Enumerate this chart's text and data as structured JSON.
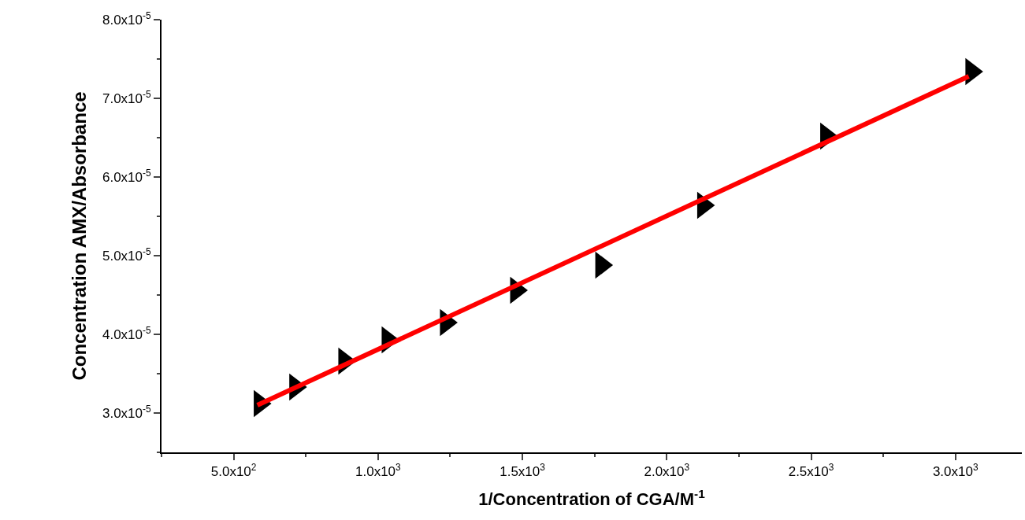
{
  "chart_data": {
    "type": "scatter",
    "xlabel": "1/Concentration of CGA/M$^{-1}$",
    "ylabel": "Concentration AMX/Absorbance",
    "grid": false,
    "legend": false,
    "xlim": [
      250,
      3230
    ],
    "ylim": [
      2.5e-05,
      8e-05
    ],
    "xticks": [
      {
        "value": 500,
        "label": "5.0x10$^{2}$"
      },
      {
        "value": 1000,
        "label": "1.0x10$^{3}$"
      },
      {
        "value": 1500,
        "label": "1.5x10$^{3}$"
      },
      {
        "value": 2000,
        "label": "2.0x10$^{3}$"
      },
      {
        "value": 2500,
        "label": "2.5x10$^{3}$"
      },
      {
        "value": 3000,
        "label": "3.0x10$^{3}$"
      }
    ],
    "yticks": [
      {
        "value": 3e-05,
        "label": "3.0x10$^{-5}$"
      },
      {
        "value": 4e-05,
        "label": "4.0x10$^{-5}$"
      },
      {
        "value": 5e-05,
        "label": "5.0x10$^{-5}$"
      },
      {
        "value": 6e-05,
        "label": "6.0x10$^{-5}$"
      },
      {
        "value": 7e-05,
        "label": "7.0x10$^{-5}$"
      },
      {
        "value": 8e-05,
        "label": "8.0x10$^{-5}$"
      }
    ],
    "series": [
      {
        "marker": "triangle",
        "color": "#000000",
        "x": [
          590,
          713,
          883,
          1033,
          1235,
          1478,
          1773,
          2126,
          2552,
          3055
        ],
        "values": [
          3.12e-05,
          3.33e-05,
          3.66e-05,
          3.93e-05,
          4.15e-05,
          4.56e-05,
          4.88e-05,
          5.64e-05,
          6.52e-05,
          7.34e-05
        ]
      },
      {
        "type": "line",
        "color": "#ff0000",
        "line_style": "solid",
        "x": [
          582,
          3046
        ],
        "values": [
          3.1e-05,
          7.28e-05
        ]
      }
    ]
  }
}
